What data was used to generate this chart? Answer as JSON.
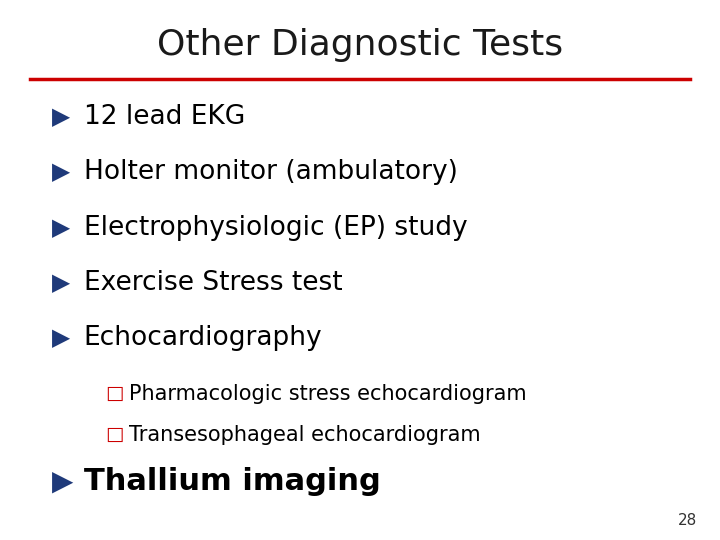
{
  "title": "Other Diagnostic Tests",
  "title_color": "#1a1a1a",
  "title_fontsize": 26,
  "title_font": "sans-serif",
  "line_color": "#cc0000",
  "background_color": "#ffffff",
  "bullet_color": "#1f3a7a",
  "bullet_char": "▶",
  "sub_bullet_color": "#cc0000",
  "sub_bullet_char": "□",
  "main_items": [
    "12 lead EKG",
    "Holter monitor (ambulatory)",
    "Electrophysiologic (EP) study",
    "Exercise Stress test",
    "Echocardiography"
  ],
  "sub_items": [
    "Pharmacologic stress echocardiogram",
    "Transesophageal echocardiogram"
  ],
  "last_item": "Thallium imaging",
  "page_number": "28",
  "main_fontsize": 19,
  "sub_fontsize": 15,
  "last_fontsize": 22
}
